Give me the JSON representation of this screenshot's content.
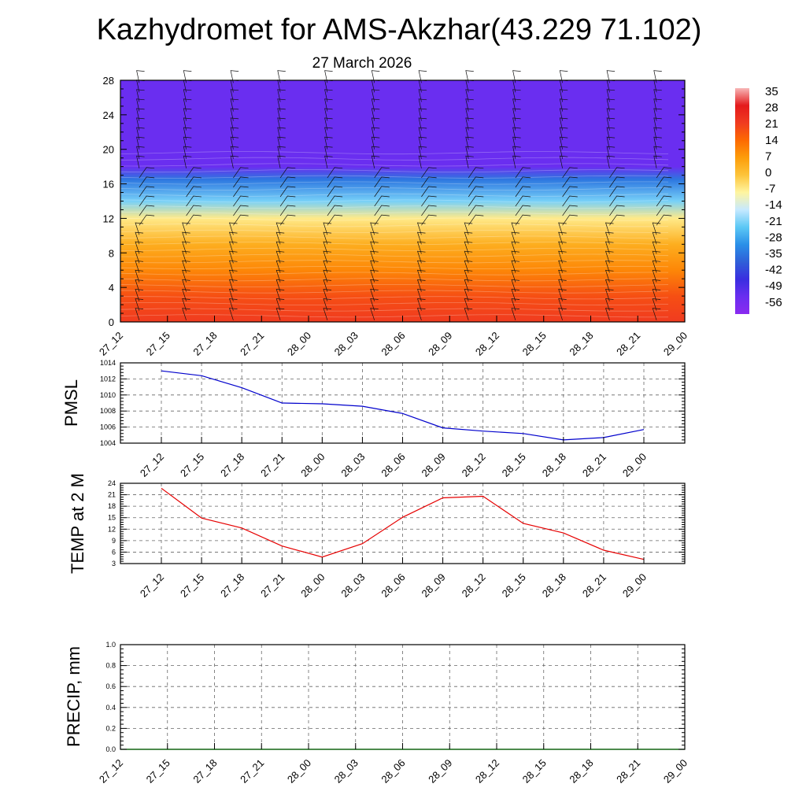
{
  "title": "Kazhydromet for AMS-Akzhar(43.229 71.102)",
  "subtitle": "27 March 2026",
  "time_labels": [
    "27_12",
    "27_15",
    "27_18",
    "27_21",
    "28_00",
    "28_03",
    "28_06",
    "28_09",
    "28_12",
    "28_15",
    "28_18",
    "28_21",
    "29_00"
  ],
  "colorbar": {
    "labels": [
      "35",
      "28",
      "21",
      "14",
      "7",
      "0",
      "-7",
      "-14",
      "-21",
      "-28",
      "-35",
      "-42",
      "-49",
      "-56"
    ],
    "stops": [
      "#f7b6b6",
      "#e41a1c",
      "#f03b20",
      "#fd6a02",
      "#fd9d0a",
      "#fdc43a",
      "#fff5a0",
      "#c6e9ff",
      "#5cc8f5",
      "#2a8fe8",
      "#2f5fd8",
      "#3a2ee0",
      "#6a2ef0",
      "#8a2af0"
    ]
  },
  "chart_data": [
    {
      "type": "heatmap",
      "title": "",
      "ylabel": "",
      "ylim": [
        0,
        28
      ],
      "yticks": [
        "0",
        "4",
        "8",
        "12",
        "16",
        "20",
        "24",
        "28"
      ],
      "x": [
        "27_12",
        "27_15",
        "27_18",
        "27_21",
        "28_00",
        "28_03",
        "28_06",
        "28_09",
        "28_12",
        "28_15",
        "28_18",
        "28_21",
        "29_00"
      ],
      "value_bands": [
        {
          "altitude": 0,
          "value": 21
        },
        {
          "altitude": 3,
          "value": 18
        },
        {
          "altitude": 6,
          "value": 10
        },
        {
          "altitude": 9,
          "value": 4
        },
        {
          "altitude": 12,
          "value": -7
        },
        {
          "altitude": 14,
          "value": -20
        },
        {
          "altitude": 16.5,
          "value": -35
        },
        {
          "altitude": 18,
          "value": -56
        },
        {
          "altitude": 20,
          "value": -56
        },
        {
          "altitude": 28,
          "value": -56
        }
      ],
      "legend": "right"
    },
    {
      "type": "line",
      "ylabel": "PMSL",
      "ylim": [
        1004,
        1014
      ],
      "yticks": [
        "1004",
        "1006",
        "1008",
        "1010",
        "1012",
        "1014"
      ],
      "x": [
        "27_12",
        "27_15",
        "27_18",
        "27_21",
        "28_00",
        "28_03",
        "28_06",
        "28_09",
        "28_12",
        "28_15",
        "28_18",
        "28_21",
        "29_00"
      ],
      "series": [
        {
          "name": "PMSL",
          "color": "#0000cc",
          "values": [
            1013.0,
            1012.4,
            1010.9,
            1009.0,
            1008.9,
            1008.6,
            1007.7,
            1005.9,
            1005.5,
            1005.2,
            1004.4,
            1004.7,
            1005.7
          ]
        }
      ]
    },
    {
      "type": "line",
      "ylabel": "TEMP at 2 M",
      "ylim": [
        3,
        24
      ],
      "yticks": [
        "3",
        "6",
        "9",
        "12",
        "15",
        "18",
        "21",
        "24"
      ],
      "x": [
        "27_12",
        "27_15",
        "27_18",
        "27_21",
        "28_00",
        "28_03",
        "28_06",
        "28_09",
        "28_12",
        "28_15",
        "28_18",
        "28_21",
        "29_00"
      ],
      "series": [
        {
          "name": "TEMP at 2 M",
          "color": "#e60000",
          "values": [
            22.7,
            14.9,
            12.3,
            7.6,
            4.7,
            8.2,
            15.1,
            20.2,
            20.6,
            13.5,
            11.0,
            6.5,
            4.1
          ]
        }
      ]
    },
    {
      "type": "line",
      "ylabel": "PRECIP, mm",
      "ylim": [
        0.0,
        1.0
      ],
      "yticks": [
        "0.0",
        "0.2",
        "0.4",
        "0.6",
        "0.8",
        "1.0"
      ],
      "x": [
        "27_12",
        "27_15",
        "27_18",
        "27_21",
        "28_00",
        "28_03",
        "28_06",
        "28_09",
        "28_12",
        "28_15",
        "28_18",
        "28_21",
        "29_00"
      ],
      "series": [
        {
          "name": "PRECIP, mm",
          "color": "#006400",
          "values": [
            0,
            0,
            0,
            0,
            0,
            0,
            0,
            0,
            0,
            0,
            0,
            0,
            0
          ]
        }
      ]
    }
  ]
}
